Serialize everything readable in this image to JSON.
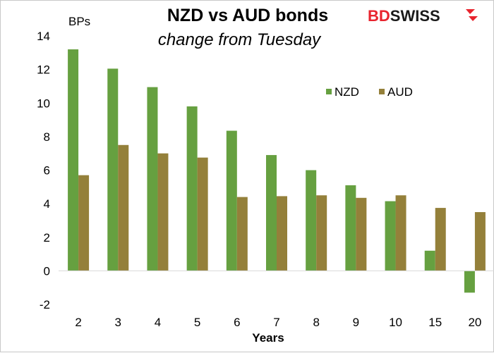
{
  "brand": {
    "logo_prefix": "BD",
    "logo_suffix": "SWISS",
    "colors": {
      "prefix": "#e8242e",
      "suffix": "#1a1a1a"
    }
  },
  "chart_data": {
    "type": "bar",
    "title": "NZD vs AUD bonds",
    "subtitle": "change from Tuesday",
    "ylabel": "BPs",
    "xlabel": "Years",
    "ylim": [
      -2,
      14
    ],
    "yticks": [
      -2,
      0,
      2,
      4,
      6,
      8,
      10,
      12,
      14
    ],
    "grid": false,
    "legend_position": "top-right",
    "categories": [
      "2",
      "3",
      "4",
      "5",
      "6",
      "7",
      "8",
      "9",
      "10",
      "15",
      "20"
    ],
    "series": [
      {
        "name": "NZD",
        "color": "#66a040",
        "values": [
          13.2,
          12.05,
          10.95,
          9.8,
          8.35,
          6.9,
          6.0,
          5.1,
          4.15,
          1.2,
          -1.3
        ]
      },
      {
        "name": "AUD",
        "color": "#94803a",
        "values": [
          5.7,
          7.5,
          7.0,
          6.75,
          4.4,
          4.45,
          4.5,
          4.35,
          4.5,
          3.75,
          3.5
        ]
      }
    ]
  }
}
